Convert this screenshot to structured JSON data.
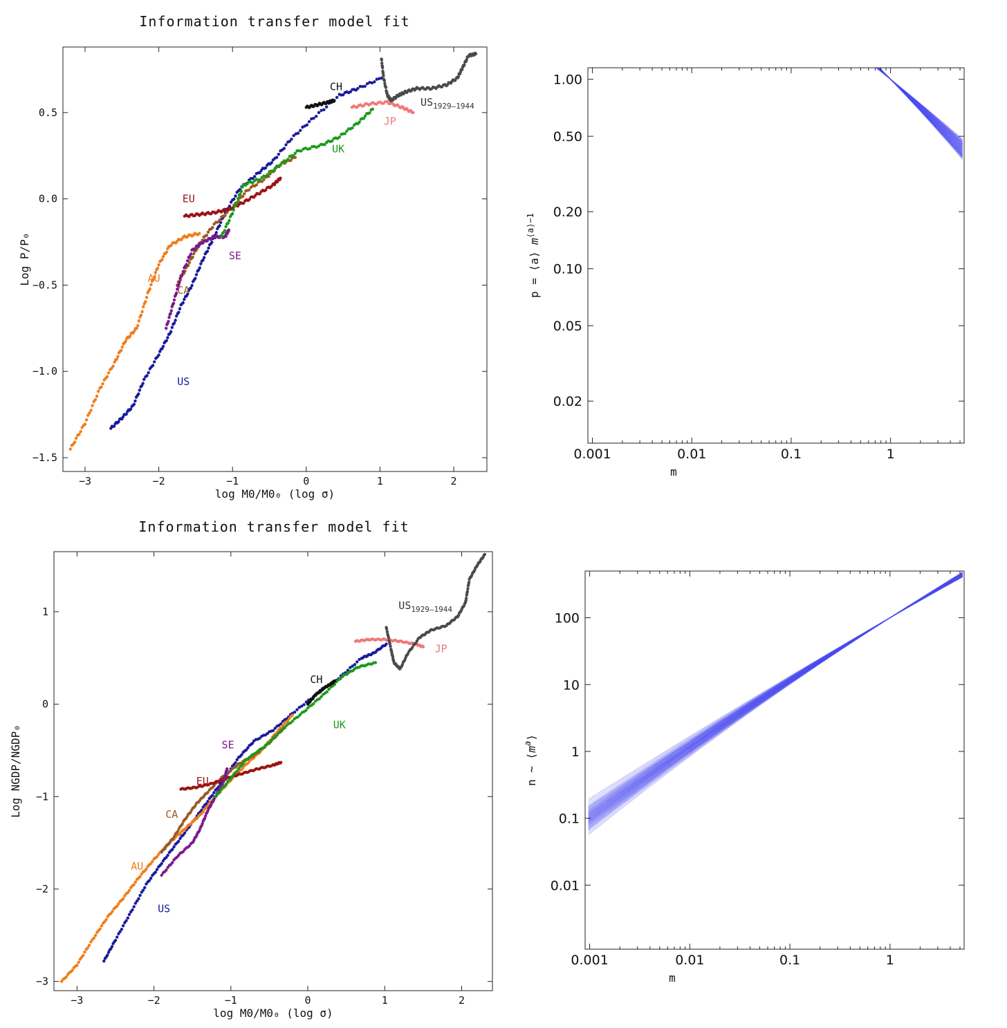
{
  "chart_data": [
    {
      "type": "scatter",
      "title": "Information transfer model fit",
      "xlabel": "log M0/M0₀ (log σ)",
      "ylabel": "Log P/P₀",
      "xlim": [
        -3.3,
        2.45
      ],
      "ylim": [
        -1.58,
        0.88
      ],
      "xticks": [
        -3,
        -2,
        -1,
        0,
        1,
        2
      ],
      "yticks": [
        -1.5,
        -1.0,
        -0.5,
        0.0,
        0.5
      ],
      "ytick_labels": [
        "-1.5",
        "-1.0",
        "-0.5",
        "0.0",
        "0.5"
      ],
      "series": [
        {
          "name": "US",
          "color": "#1a1a9c",
          "label_at": [
            -1.75,
            -1.08
          ],
          "points": [
            [
              -2.65,
              -1.33
            ],
            [
              -2.5,
              -1.27
            ],
            [
              -2.35,
              -1.2
            ],
            [
              -2.2,
              -1.05
            ],
            [
              -2.0,
              -0.9
            ],
            [
              -1.85,
              -0.78
            ],
            [
              -1.7,
              -0.62
            ],
            [
              -1.55,
              -0.5
            ],
            [
              -1.4,
              -0.35
            ],
            [
              -1.25,
              -0.22
            ],
            [
              -1.1,
              -0.08
            ],
            [
              -0.9,
              0.06
            ],
            [
              -0.65,
              0.15
            ],
            [
              -0.45,
              0.22
            ],
            [
              -0.2,
              0.35
            ],
            [
              0.1,
              0.47
            ],
            [
              0.45,
              0.6
            ],
            [
              0.7,
              0.64
            ],
            [
              1.02,
              0.7
            ]
          ]
        },
        {
          "name": "AU",
          "color": "#f07d1a",
          "label_at": [
            -2.15,
            -0.48
          ],
          "points": [
            [
              -3.2,
              -1.45
            ],
            [
              -3.0,
              -1.3
            ],
            [
              -2.8,
              -1.1
            ],
            [
              -2.6,
              -0.95
            ],
            [
              -2.45,
              -0.82
            ],
            [
              -2.3,
              -0.75
            ],
            [
              -2.15,
              -0.55
            ],
            [
              -2.0,
              -0.38
            ],
            [
              -1.85,
              -0.27
            ],
            [
              -1.65,
              -0.22
            ],
            [
              -1.45,
              -0.2
            ]
          ]
        },
        {
          "name": "CA",
          "color": "#9b5a24",
          "label_at": [
            -1.75,
            -0.55
          ],
          "points": [
            [
              -1.75,
              -0.5
            ],
            [
              -1.6,
              -0.38
            ],
            [
              -1.45,
              -0.26
            ],
            [
              -1.25,
              -0.15
            ],
            [
              -1.0,
              -0.05
            ],
            [
              -0.8,
              0.05
            ],
            [
              -0.55,
              0.12
            ],
            [
              -0.35,
              0.2
            ],
            [
              -0.15,
              0.24
            ]
          ]
        },
        {
          "name": "EU",
          "color": "#9a1414",
          "label_at": [
            -1.68,
            -0.02
          ],
          "points": [
            [
              -1.65,
              -0.1
            ],
            [
              -1.45,
              -0.09
            ],
            [
              -1.25,
              -0.08
            ],
            [
              -1.05,
              -0.06
            ],
            [
              -0.85,
              -0.02
            ],
            [
              -0.65,
              0.03
            ],
            [
              -0.45,
              0.08
            ],
            [
              -0.35,
              0.12
            ]
          ]
        },
        {
          "name": "SE",
          "color": "#7a1a8a",
          "label_at": [
            -1.05,
            -0.35
          ],
          "points": [
            [
              -1.9,
              -0.75
            ],
            [
              -1.8,
              -0.6
            ],
            [
              -1.7,
              -0.45
            ],
            [
              -1.55,
              -0.3
            ],
            [
              -1.4,
              -0.25
            ],
            [
              -1.25,
              -0.22
            ],
            [
              -1.1,
              -0.22
            ],
            [
              -1.05,
              -0.18
            ]
          ]
        },
        {
          "name": "UK",
          "color": "#1a9a1a",
          "label_at": [
            0.35,
            0.27
          ],
          "points": [
            [
              -1.15,
              -0.22
            ],
            [
              -1.0,
              -0.08
            ],
            [
              -0.85,
              0.08
            ],
            [
              -0.6,
              0.12
            ],
            [
              -0.35,
              0.2
            ],
            [
              -0.1,
              0.28
            ],
            [
              0.2,
              0.31
            ],
            [
              0.45,
              0.36
            ],
            [
              0.7,
              0.44
            ],
            [
              0.9,
              0.52
            ]
          ]
        },
        {
          "name": "CH",
          "color": "#111111",
          "label_at": [
            0.32,
            0.63
          ],
          "points": [
            [
              0.0,
              0.53
            ],
            [
              0.15,
              0.545
            ],
            [
              0.3,
              0.56
            ],
            [
              0.38,
              0.57
            ]
          ]
        },
        {
          "name": "JP",
          "color": "#f07878",
          "label_at": [
            1.05,
            0.43
          ],
          "points": [
            [
              0.62,
              0.53
            ],
            [
              0.85,
              0.55
            ],
            [
              1.1,
              0.56
            ],
            [
              1.3,
              0.53
            ],
            [
              1.45,
              0.5
            ]
          ]
        },
        {
          "name": "US₁₉₂₉₋₁₉₄₄",
          "color": "#4a4a4a",
          "label_at": [
            1.55,
            0.54
          ],
          "points": [
            [
              1.02,
              0.81
            ],
            [
              1.05,
              0.7
            ],
            [
              1.1,
              0.6
            ],
            [
              1.15,
              0.57
            ],
            [
              1.25,
              0.6
            ],
            [
              1.35,
              0.62
            ],
            [
              1.5,
              0.64
            ],
            [
              1.7,
              0.64
            ],
            [
              1.9,
              0.66
            ],
            [
              2.05,
              0.7
            ],
            [
              2.12,
              0.76
            ],
            [
              2.2,
              0.83
            ],
            [
              2.3,
              0.84
            ]
          ]
        }
      ]
    },
    {
      "type": "line",
      "xlabel": "m",
      "ylabel": "p = ⟨a⟩ m^(⟨a⟩−1)",
      "xscale": "log",
      "yscale": "log",
      "xlim": [
        0.0009,
        5.5
      ],
      "ylim": [
        0.012,
        1.15
      ],
      "xticks": [
        0.001,
        0.01,
        0.1,
        1
      ],
      "xtick_labels": [
        "0.001",
        "0.01",
        "0.1",
        "1"
      ],
      "yticks": [
        0.02,
        0.05,
        0.1,
        0.2,
        0.5,
        1.0
      ],
      "ytick_labels": [
        "0.02",
        "0.05",
        "0.10",
        "0.20",
        "0.50",
        "1.00"
      ],
      "model": "p = a * m^(a-1) * exp(-b * ln(m)^2), a from 0.45 to 0.58",
      "curve_count": 60,
      "color": "#4a4af0"
    },
    {
      "type": "scatter",
      "title": "Information transfer model fit",
      "xlabel": "log M0/M0₀ (log σ)",
      "ylabel": "Log NGDP/NGDP₀",
      "xlim": [
        -3.3,
        2.4
      ],
      "ylim": [
        -3.1,
        1.65
      ],
      "xticks": [
        -3,
        -2,
        -1,
        0,
        1,
        2
      ],
      "yticks": [
        -3,
        -2,
        -1,
        0,
        1
      ],
      "ytick_labels": [
        "-3",
        "-2",
        "-1",
        "0",
        "1"
      ],
      "series": [
        {
          "name": "US",
          "color": "#1a1a9c",
          "label_at": [
            -1.95,
            -2.25
          ],
          "points": [
            [
              -2.65,
              -2.78
            ],
            [
              -2.5,
              -2.55
            ],
            [
              -2.3,
              -2.25
            ],
            [
              -2.1,
              -1.95
            ],
            [
              -1.9,
              -1.72
            ],
            [
              -1.7,
              -1.5
            ],
            [
              -1.5,
              -1.28
            ],
            [
              -1.3,
              -1.05
            ],
            [
              -1.1,
              -0.82
            ],
            [
              -0.9,
              -0.58
            ],
            [
              -0.7,
              -0.4
            ],
            [
              -0.45,
              -0.28
            ],
            [
              -0.2,
              -0.1
            ],
            [
              0.1,
              0.1
            ],
            [
              0.4,
              0.28
            ],
            [
              0.7,
              0.5
            ],
            [
              0.85,
              0.55
            ],
            [
              1.02,
              0.65
            ]
          ]
        },
        {
          "name": "AU",
          "color": "#f07d1a",
          "label_at": [
            -2.3,
            -1.79
          ],
          "points": [
            [
              -3.2,
              -3.0
            ],
            [
              -3.0,
              -2.82
            ],
            [
              -2.8,
              -2.55
            ],
            [
              -2.6,
              -2.3
            ],
            [
              -2.4,
              -2.1
            ],
            [
              -2.2,
              -1.88
            ],
            [
              -2.0,
              -1.68
            ],
            [
              -1.8,
              -1.5
            ],
            [
              -1.6,
              -1.35
            ],
            [
              -1.4,
              -1.2
            ],
            [
              -1.2,
              -1.0
            ],
            [
              -1.0,
              -0.82
            ],
            [
              -0.8,
              -0.65
            ],
            [
              -0.6,
              -0.5
            ],
            [
              -0.4,
              -0.3
            ],
            [
              -0.2,
              -0.12
            ]
          ]
        },
        {
          "name": "CA",
          "color": "#9b5a24",
          "label_at": [
            -1.85,
            -1.23
          ],
          "points": [
            [
              -1.9,
              -1.6
            ],
            [
              -1.75,
              -1.45
            ],
            [
              -1.6,
              -1.25
            ],
            [
              -1.45,
              -1.08
            ],
            [
              -1.3,
              -0.95
            ],
            [
              -1.1,
              -0.78
            ],
            [
              -0.9,
              -0.65
            ],
            [
              -0.7,
              -0.55
            ],
            [
              -0.5,
              -0.42
            ],
            [
              -0.3,
              -0.25
            ]
          ]
        },
        {
          "name": "EU",
          "color": "#9a1414",
          "label_at": [
            -1.45,
            -0.87
          ],
          "points": [
            [
              -1.65,
              -0.92
            ],
            [
              -1.45,
              -0.9
            ],
            [
              -1.25,
              -0.86
            ],
            [
              -1.05,
              -0.8
            ],
            [
              -0.85,
              -0.75
            ],
            [
              -0.65,
              -0.7
            ],
            [
              -0.45,
              -0.66
            ],
            [
              -0.35,
              -0.63
            ]
          ]
        },
        {
          "name": "SE",
          "color": "#7a1a8a",
          "label_at": [
            -1.12,
            -0.48
          ],
          "points": [
            [
              -1.9,
              -1.85
            ],
            [
              -1.7,
              -1.65
            ],
            [
              -1.5,
              -1.5
            ],
            [
              -1.4,
              -1.35
            ],
            [
              -1.3,
              -1.15
            ],
            [
              -1.2,
              -1.0
            ],
            [
              -1.1,
              -0.85
            ],
            [
              -1.05,
              -0.7
            ]
          ]
        },
        {
          "name": "UK",
          "color": "#1a9a1a",
          "label_at": [
            0.33,
            -0.26
          ],
          "points": [
            [
              -1.2,
              -1.0
            ],
            [
              -1.0,
              -0.8
            ],
            [
              -0.8,
              -0.6
            ],
            [
              -0.55,
              -0.45
            ],
            [
              -0.3,
              -0.25
            ],
            [
              -0.05,
              -0.08
            ],
            [
              0.2,
              0.1
            ],
            [
              0.45,
              0.3
            ],
            [
              0.65,
              0.4
            ],
            [
              0.88,
              0.45
            ]
          ]
        },
        {
          "name": "CH",
          "color": "#111111",
          "label_at": [
            0.03,
            0.23
          ],
          "points": [
            [
              0.0,
              0.0
            ],
            [
              0.1,
              0.1
            ],
            [
              0.2,
              0.17
            ],
            [
              0.3,
              0.22
            ],
            [
              0.35,
              0.25
            ]
          ]
        },
        {
          "name": "JP",
          "color": "#f07878",
          "label_at": [
            1.65,
            0.56
          ],
          "points": [
            [
              0.62,
              0.68
            ],
            [
              0.8,
              0.7
            ],
            [
              1.0,
              0.7
            ],
            [
              1.2,
              0.68
            ],
            [
              1.4,
              0.65
            ],
            [
              1.5,
              0.62
            ]
          ]
        },
        {
          "name": "US₁₉₂₉₋₁₉₄₄",
          "color": "#4a4a4a",
          "label_at": [
            1.18,
            1.03
          ],
          "points": [
            [
              1.02,
              0.83
            ],
            [
              1.08,
              0.6
            ],
            [
              1.12,
              0.45
            ],
            [
              1.2,
              0.38
            ],
            [
              1.3,
              0.55
            ],
            [
              1.45,
              0.72
            ],
            [
              1.6,
              0.8
            ],
            [
              1.8,
              0.85
            ],
            [
              1.95,
              0.95
            ],
            [
              2.05,
              1.1
            ],
            [
              2.1,
              1.35
            ],
            [
              2.2,
              1.5
            ],
            [
              2.3,
              1.62
            ]
          ]
        }
      ]
    },
    {
      "type": "line",
      "xlabel": "m",
      "ylabel": "n ~ ⟨m^a⟩",
      "xscale": "log",
      "yscale": "log",
      "xlim": [
        0.0009,
        5.5
      ],
      "ylim": [
        0.0011,
        500
      ],
      "xticks": [
        0.001,
        0.01,
        0.1,
        1
      ],
      "xtick_labels": [
        "0.001",
        "0.01",
        "0.1",
        "1"
      ],
      "yticks": [
        0.01,
        0.1,
        1,
        10,
        100
      ],
      "ytick_labels": [
        "0.01",
        "0.1",
        "1",
        "10",
        "100"
      ],
      "model": "n = 100 * m^a * exp(-b * ln(m)^2), a from 0.86 to 0.96",
      "curve_count": 60,
      "color": "#4a4af0"
    }
  ]
}
